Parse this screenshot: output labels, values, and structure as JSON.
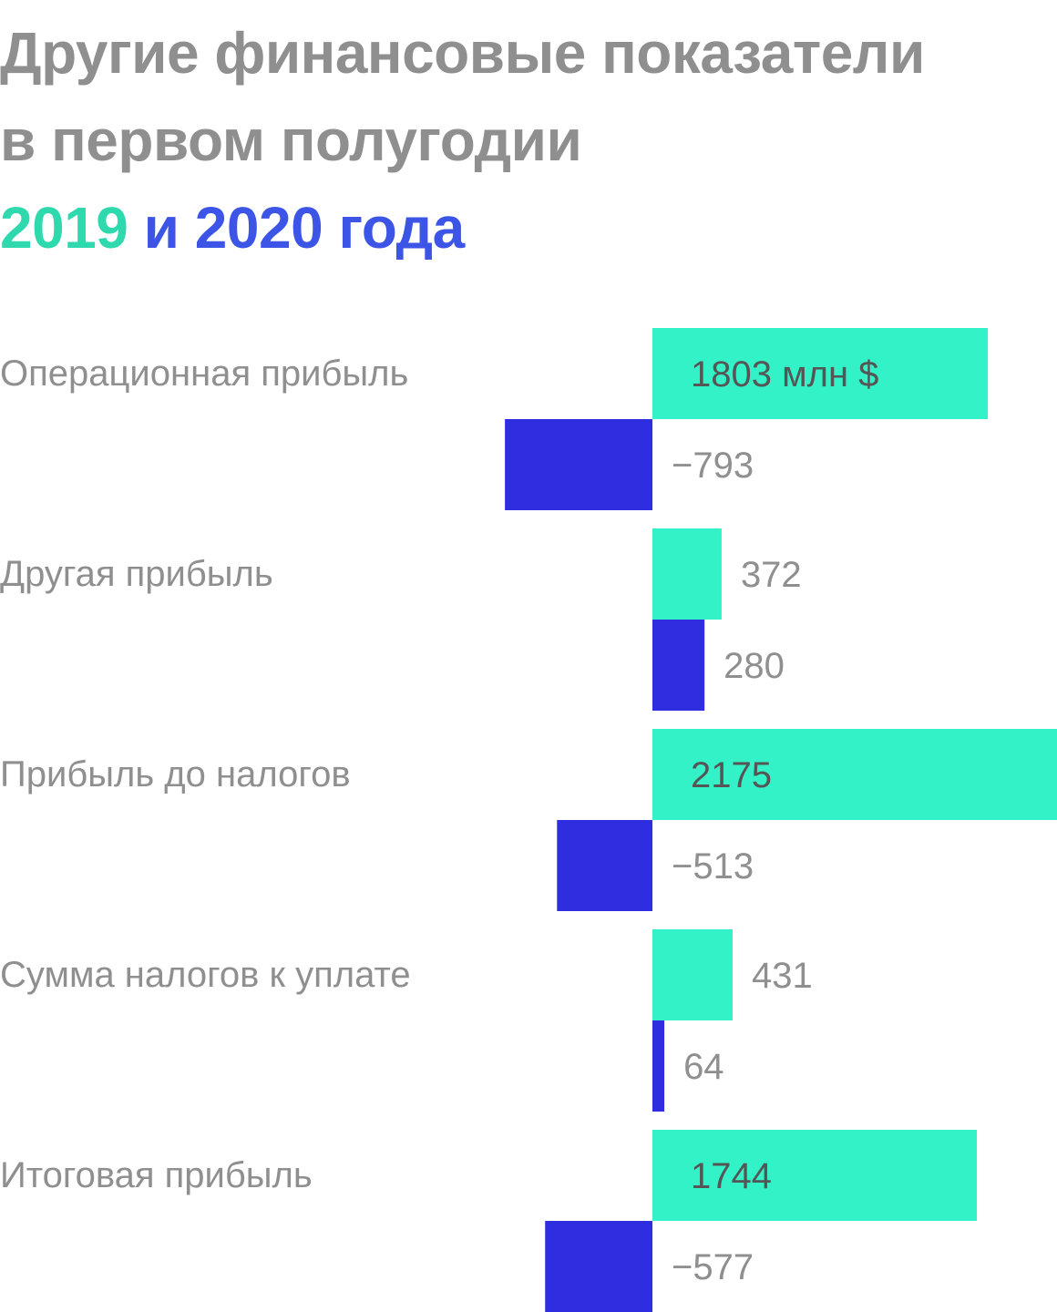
{
  "title": {
    "line1": "Другие финансовые показатели",
    "line2": "в первом полугодии",
    "year1": "2019",
    "conj": "и",
    "year2": "2020 года"
  },
  "colors": {
    "series_2019": "#33f2c8",
    "series_2020": "#2e2ee0",
    "text": "#8f8f8f",
    "label_inside": "#555555"
  },
  "chart_data": {
    "type": "bar",
    "orientation": "horizontal",
    "categories": [
      "Операционная прибыль",
      "Другая прибыль",
      "Прибыль до налогов",
      "Сумма налогов к уплате",
      "Итоговая прибыль"
    ],
    "series": [
      {
        "name": "2019",
        "values": [
          1803,
          372,
          2175,
          431,
          1744
        ]
      },
      {
        "name": "2020",
        "values": [
          -793,
          280,
          -513,
          64,
          -577
        ]
      }
    ],
    "labels": [
      [
        "1803 млн $",
        "372",
        "2175",
        "431",
        "1744"
      ],
      [
        "−793",
        "280",
        "−513",
        "64",
        "−577"
      ]
    ],
    "unit": "млн $"
  }
}
